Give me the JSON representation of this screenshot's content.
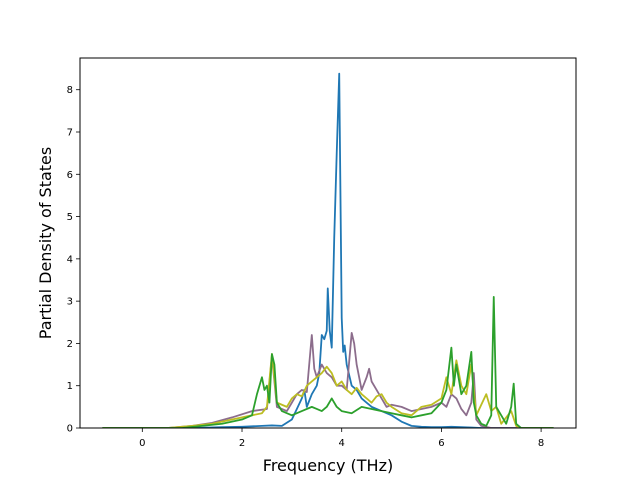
{
  "chart_data": {
    "type": "line",
    "title": "",
    "xlabel": "Frequency (THz)",
    "ylabel": "Partial Density of States",
    "xlim": [
      -1.25,
      8.7
    ],
    "ylim": [
      0,
      8.75
    ],
    "xticks": [
      0,
      2,
      4,
      6,
      8
    ],
    "yticks": [
      0,
      1,
      2,
      3,
      4,
      5,
      6,
      7,
      8
    ],
    "xtick_labels": [
      "0",
      "2",
      "4",
      "6",
      "8"
    ],
    "ytick_labels": [
      "0",
      "1",
      "2",
      "3",
      "4",
      "5",
      "6",
      "7",
      "8"
    ],
    "grid": false,
    "legend": false,
    "series": [
      {
        "color": "#1f77b4",
        "points": [
          [
            -0.8,
            0
          ],
          [
            1.0,
            0.0
          ],
          [
            1.6,
            0.02
          ],
          [
            2.0,
            0.03
          ],
          [
            2.4,
            0.05
          ],
          [
            2.6,
            0.06
          ],
          [
            2.8,
            0.05
          ],
          [
            3.0,
            0.2
          ],
          [
            3.1,
            0.45
          ],
          [
            3.2,
            0.7
          ],
          [
            3.25,
            0.9
          ],
          [
            3.3,
            0.5
          ],
          [
            3.4,
            0.8
          ],
          [
            3.5,
            1.0
          ],
          [
            3.55,
            1.3
          ],
          [
            3.6,
            2.2
          ],
          [
            3.65,
            2.1
          ],
          [
            3.7,
            2.3
          ],
          [
            3.72,
            3.3
          ],
          [
            3.76,
            2.3
          ],
          [
            3.8,
            1.9
          ],
          [
            3.85,
            4.5
          ],
          [
            3.9,
            6.5
          ],
          [
            3.95,
            8.38
          ],
          [
            4.0,
            2.6
          ],
          [
            4.03,
            1.8
          ],
          [
            4.06,
            1.95
          ],
          [
            4.1,
            1.5
          ],
          [
            4.2,
            1.0
          ],
          [
            4.3,
            0.9
          ],
          [
            4.4,
            0.7
          ],
          [
            4.5,
            0.6
          ],
          [
            4.6,
            0.5
          ],
          [
            4.8,
            0.4
          ],
          [
            5.0,
            0.3
          ],
          [
            5.2,
            0.15
          ],
          [
            5.4,
            0.05
          ],
          [
            5.6,
            0.03
          ],
          [
            5.8,
            0.02
          ],
          [
            6.0,
            0.02
          ],
          [
            6.2,
            0.03
          ],
          [
            6.4,
            0.02
          ],
          [
            6.6,
            0.01
          ],
          [
            6.8,
            0.0
          ],
          [
            8.25,
            0
          ]
        ]
      },
      {
        "color": "#8c6d8c",
        "points": [
          [
            -0.8,
            0
          ],
          [
            0.5,
            0.0
          ],
          [
            1.0,
            0.05
          ],
          [
            1.4,
            0.12
          ],
          [
            1.8,
            0.25
          ],
          [
            2.2,
            0.4
          ],
          [
            2.5,
            0.45
          ],
          [
            2.6,
            1.7
          ],
          [
            2.7,
            0.5
          ],
          [
            2.9,
            0.4
          ],
          [
            3.0,
            0.6
          ],
          [
            3.1,
            0.8
          ],
          [
            3.2,
            0.9
          ],
          [
            3.3,
            0.85
          ],
          [
            3.4,
            2.2
          ],
          [
            3.45,
            1.4
          ],
          [
            3.5,
            1.2
          ],
          [
            3.6,
            1.5
          ],
          [
            3.7,
            1.3
          ],
          [
            3.8,
            1.2
          ],
          [
            3.9,
            1.0
          ],
          [
            4.0,
            1.0
          ],
          [
            4.1,
            0.9
          ],
          [
            4.2,
            2.25
          ],
          [
            4.25,
            2.0
          ],
          [
            4.3,
            1.5
          ],
          [
            4.4,
            0.9
          ],
          [
            4.5,
            1.2
          ],
          [
            4.55,
            1.4
          ],
          [
            4.6,
            1.1
          ],
          [
            4.7,
            0.9
          ],
          [
            4.8,
            0.7
          ],
          [
            4.9,
            0.5
          ],
          [
            5.0,
            0.55
          ],
          [
            5.2,
            0.5
          ],
          [
            5.4,
            0.4
          ],
          [
            5.6,
            0.45
          ],
          [
            5.8,
            0.5
          ],
          [
            6.0,
            0.6
          ],
          [
            6.1,
            0.5
          ],
          [
            6.2,
            0.8
          ],
          [
            6.3,
            0.7
          ],
          [
            6.4,
            0.45
          ],
          [
            6.5,
            0.3
          ],
          [
            6.6,
            0.6
          ],
          [
            6.65,
            1.3
          ],
          [
            6.7,
            0.2
          ],
          [
            6.8,
            0.05
          ],
          [
            7.0,
            0.0
          ],
          [
            8.25,
            0
          ]
        ]
      },
      {
        "color": "#bcbd22",
        "points": [
          [
            -0.8,
            0
          ],
          [
            0.5,
            0.0
          ],
          [
            1.0,
            0.05
          ],
          [
            1.4,
            0.1
          ],
          [
            1.8,
            0.2
          ],
          [
            2.2,
            0.3
          ],
          [
            2.4,
            0.35
          ],
          [
            2.5,
            0.5
          ],
          [
            2.6,
            1.75
          ],
          [
            2.7,
            0.6
          ],
          [
            2.9,
            0.5
          ],
          [
            3.0,
            0.7
          ],
          [
            3.1,
            0.8
          ],
          [
            3.2,
            0.75
          ],
          [
            3.3,
            1.0
          ],
          [
            3.4,
            1.1
          ],
          [
            3.5,
            1.2
          ],
          [
            3.6,
            1.3
          ],
          [
            3.7,
            1.45
          ],
          [
            3.8,
            1.3
          ],
          [
            3.9,
            1.0
          ],
          [
            4.0,
            1.1
          ],
          [
            4.1,
            0.9
          ],
          [
            4.2,
            0.8
          ],
          [
            4.3,
            0.95
          ],
          [
            4.4,
            0.8
          ],
          [
            4.5,
            0.7
          ],
          [
            4.6,
            0.6
          ],
          [
            4.7,
            0.75
          ],
          [
            4.8,
            0.8
          ],
          [
            4.9,
            0.6
          ],
          [
            5.0,
            0.5
          ],
          [
            5.2,
            0.35
          ],
          [
            5.4,
            0.3
          ],
          [
            5.6,
            0.5
          ],
          [
            5.8,
            0.55
          ],
          [
            6.0,
            0.7
          ],
          [
            6.1,
            1.2
          ],
          [
            6.2,
            0.8
          ],
          [
            6.3,
            1.6
          ],
          [
            6.4,
            1.0
          ],
          [
            6.5,
            0.8
          ],
          [
            6.6,
            1.5
          ],
          [
            6.7,
            0.3
          ],
          [
            6.9,
            0.8
          ],
          [
            7.0,
            0.4
          ],
          [
            7.1,
            0.5
          ],
          [
            7.2,
            0.1
          ],
          [
            7.4,
            0.4
          ],
          [
            7.5,
            0.05
          ],
          [
            7.6,
            0.0
          ],
          [
            8.25,
            0
          ]
        ]
      },
      {
        "color": "#2ca02c",
        "points": [
          [
            -0.8,
            0
          ],
          [
            0.8,
            0.0
          ],
          [
            1.2,
            0.05
          ],
          [
            1.6,
            0.1
          ],
          [
            2.0,
            0.2
          ],
          [
            2.2,
            0.3
          ],
          [
            2.3,
            0.8
          ],
          [
            2.4,
            1.2
          ],
          [
            2.45,
            0.9
          ],
          [
            2.5,
            1.0
          ],
          [
            2.55,
            0.6
          ],
          [
            2.6,
            1.75
          ],
          [
            2.65,
            1.5
          ],
          [
            2.7,
            0.6
          ],
          [
            2.8,
            0.4
          ],
          [
            2.9,
            0.35
          ],
          [
            3.0,
            0.3
          ],
          [
            3.2,
            0.4
          ],
          [
            3.4,
            0.5
          ],
          [
            3.5,
            0.45
          ],
          [
            3.6,
            0.4
          ],
          [
            3.7,
            0.5
          ],
          [
            3.8,
            0.7
          ],
          [
            3.9,
            0.5
          ],
          [
            4.0,
            0.4
          ],
          [
            4.2,
            0.35
          ],
          [
            4.4,
            0.5
          ],
          [
            4.6,
            0.45
          ],
          [
            4.8,
            0.4
          ],
          [
            5.0,
            0.35
          ],
          [
            5.2,
            0.3
          ],
          [
            5.4,
            0.25
          ],
          [
            5.6,
            0.3
          ],
          [
            5.8,
            0.35
          ],
          [
            6.0,
            0.6
          ],
          [
            6.1,
            0.9
          ],
          [
            6.2,
            1.9
          ],
          [
            6.25,
            1.0
          ],
          [
            6.3,
            1.5
          ],
          [
            6.4,
            0.8
          ],
          [
            6.5,
            1.0
          ],
          [
            6.6,
            1.8
          ],
          [
            6.65,
            0.6
          ],
          [
            6.7,
            0.3
          ],
          [
            6.8,
            0.1
          ],
          [
            6.9,
            0.05
          ],
          [
            7.0,
            0.3
          ],
          [
            7.05,
            3.1
          ],
          [
            7.1,
            0.5
          ],
          [
            7.2,
            0.3
          ],
          [
            7.3,
            0.1
          ],
          [
            7.4,
            0.5
          ],
          [
            7.45,
            1.05
          ],
          [
            7.5,
            0.1
          ],
          [
            7.6,
            0.0
          ],
          [
            8.25,
            0
          ]
        ]
      }
    ]
  }
}
